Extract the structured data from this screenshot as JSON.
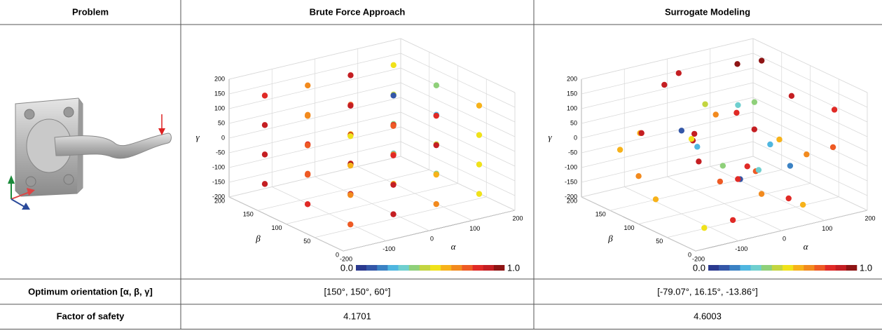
{
  "table": {
    "header": [
      "Problem",
      "Brute Force Approach",
      "Surrogate Modeling"
    ],
    "rows": [
      [
        "Optimum orientation [α, β, γ]",
        "[150°,  150°,  60°]",
        "[-79.07°,  16.15°,  -13.86°]"
      ],
      [
        "Factor of safety",
        "4.1701",
        "4.6003"
      ]
    ]
  },
  "chart_data": [
    {
      "type": "scatter3d",
      "xlabel": "α",
      "ylabel": "β",
      "zlabel": "γ",
      "xlim": [
        -200,
        200
      ],
      "xticks": [
        -200,
        -100,
        0,
        100,
        200
      ],
      "ylim": [
        0,
        200
      ],
      "yticks": [
        0,
        50,
        100,
        150,
        200
      ],
      "zlim": [
        -200,
        200
      ],
      "zticks": [
        -200,
        -150,
        -100,
        -50,
        0,
        50,
        100,
        150,
        200
      ],
      "grid": true,
      "colormap": [
        "#2b3a8f",
        "#3457a8",
        "#3b82c4",
        "#4fb6e0",
        "#6fcfcf",
        "#8fd07a",
        "#c3d540",
        "#f0e21a",
        "#f7b21a",
        "#f28a1e",
        "#ee5a24",
        "#e02a26",
        "#c41e22",
        "#8e1414"
      ],
      "clim": [
        0,
        1
      ],
      "cticks": [
        {
          "value": 0,
          "label": "0.0"
        },
        {
          "value": 1,
          "label": "1.0"
        }
      ],
      "points": {
        "x": [
          -150,
          -50,
          50,
          150,
          -150,
          -50,
          50,
          150,
          -150,
          -50,
          50,
          150,
          -150,
          -50,
          50,
          150,
          -150,
          -50,
          50,
          150,
          -150,
          -50,
          50,
          150,
          -150,
          -50,
          50,
          150,
          -150,
          -50,
          50,
          150,
          -150,
          -50,
          50,
          150,
          -150,
          -50,
          50,
          150,
          -150,
          -50,
          50,
          150,
          -150,
          -50,
          50,
          150
        ],
        "y": [
          25,
          25,
          25,
          25,
          100,
          100,
          100,
          100,
          175,
          175,
          175,
          175,
          25,
          25,
          25,
          25,
          100,
          100,
          100,
          100,
          175,
          175,
          175,
          175,
          25,
          25,
          25,
          25,
          100,
          100,
          100,
          100,
          175,
          175,
          175,
          175,
          25,
          25,
          25,
          25,
          100,
          100,
          100,
          100,
          175,
          175,
          175,
          175
        ],
        "z": [
          -150,
          -150,
          -150,
          -150,
          -150,
          -150,
          -150,
          -150,
          -150,
          -150,
          -150,
          -150,
          -50,
          -50,
          -50,
          -50,
          -50,
          -50,
          -50,
          -50,
          -50,
          -50,
          -50,
          -50,
          50,
          50,
          50,
          50,
          50,
          50,
          50,
          50,
          50,
          50,
          50,
          50,
          150,
          150,
          150,
          150,
          150,
          150,
          150,
          150,
          150,
          150,
          150,
          150
        ],
        "c": [
          0.8,
          0.9,
          0.7,
          0.5,
          0.85,
          0.95,
          0.6,
          0.4,
          0.9,
          0.75,
          0.88,
          0.3,
          0.7,
          0.92,
          0.65,
          0.55,
          0.8,
          0.97,
          0.72,
          0.45,
          0.9,
          0.85,
          0.6,
          0.35,
          0.6,
          0.88,
          0.9,
          0.5,
          0.75,
          0.95,
          0.83,
          0.25,
          0.92,
          0.7,
          0.8,
          0.48,
          0.55,
          0.78,
          0.86,
          0.6,
          0.7,
          0.9,
          0.1,
          0.4,
          0.85,
          0.68,
          0.93,
          0.52
        ]
      }
    },
    {
      "type": "scatter3d",
      "xlabel": "α",
      "ylabel": "β",
      "zlabel": "γ",
      "xlim": [
        -200,
        200
      ],
      "xticks": [
        -200,
        -100,
        0,
        100,
        200
      ],
      "ylim": [
        0,
        200
      ],
      "yticks": [
        0,
        50,
        100,
        150,
        200
      ],
      "zlim": [
        -200,
        200
      ],
      "zticks": [
        -200,
        -150,
        -100,
        -50,
        0,
        50,
        100,
        150,
        200
      ],
      "grid": true,
      "colormap": [
        "#2b3a8f",
        "#3457a8",
        "#3b82c4",
        "#4fb6e0",
        "#6fcfcf",
        "#8fd07a",
        "#c3d540",
        "#f0e21a",
        "#f7b21a",
        "#f28a1e",
        "#ee5a24",
        "#e02a26",
        "#c41e22",
        "#8e1414"
      ],
      "clim": [
        0,
        1
      ],
      "cticks": [
        {
          "value": 0,
          "label": "0.0"
        },
        {
          "value": 1,
          "label": "1.0"
        }
      ],
      "points": {
        "x": [
          -180,
          -120,
          -90,
          -60,
          -30,
          0,
          20,
          45,
          70,
          95,
          120,
          150,
          180,
          -170,
          -140,
          -100,
          -75,
          -40,
          -10,
          10,
          30,
          55,
          80,
          110,
          140,
          170,
          -160,
          -110,
          -80,
          -50,
          -20,
          5,
          35,
          60,
          90,
          125,
          160,
          -130,
          -20,
          100
        ],
        "y": [
          20,
          160,
          90,
          40,
          130,
          180,
          60,
          110,
          15,
          150,
          75,
          190,
          45,
          120,
          30,
          170,
          16,
          85,
          140,
          55,
          10,
          175,
          95,
          65,
          125,
          35,
          100,
          20,
          145,
          70,
          160,
          80,
          30,
          190,
          115,
          50,
          155,
          185,
          25,
          135
        ],
        "z": [
          150,
          -120,
          60,
          -180,
          20,
          170,
          -60,
          110,
          -150,
          30,
          -90,
          140,
          -20,
          80,
          -170,
          10,
          -14,
          130,
          -40,
          90,
          -110,
          50,
          -190,
          160,
          -70,
          120,
          -130,
          40,
          190,
          -80,
          0,
          -100,
          70,
          -160,
          100,
          -30,
          180,
          -50,
          -10,
          -140
        ],
        "c": [
          0.9,
          0.7,
          0.5,
          0.85,
          0.95,
          0.92,
          0.75,
          0.3,
          0.6,
          0.88,
          0.15,
          0.97,
          0.8,
          0.65,
          0.55,
          0.9,
          0.05,
          0.72,
          0.25,
          0.93,
          0.82,
          0.45,
          0.68,
          0.96,
          0.2,
          0.87,
          0.6,
          0.35,
          0.9,
          0.78,
          0.1,
          0.83,
          0.58,
          0.94,
          0.4,
          0.7,
          0.99,
          0.62,
          0.28,
          0.86
        ]
      }
    }
  ]
}
